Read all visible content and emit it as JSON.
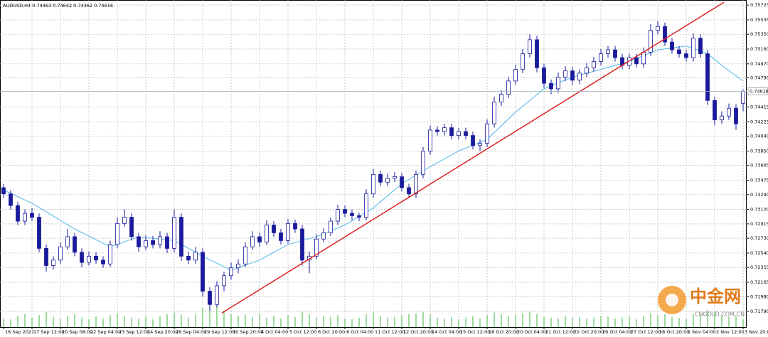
{
  "chart_data": {
    "type": "candlestick",
    "title": "AUDUSD,H4  0.74463 0.74642 0.74362 0.74616",
    "ylim": [
      0.7159,
      0.7579
    ],
    "yticks": [
      {
        "value": 0.75725,
        "label": "0.75725"
      },
      {
        "value": 0.75535,
        "label": "0.75535"
      },
      {
        "value": 0.7535,
        "label": "0.75350"
      },
      {
        "value": 0.7516,
        "label": "0.75160"
      },
      {
        "value": 0.7497,
        "label": "0.74970"
      },
      {
        "value": 0.7479,
        "label": "0.74790"
      },
      {
        "value": 0.74415,
        "label": "0.74415"
      },
      {
        "value": 0.74225,
        "label": "0.74225"
      },
      {
        "value": 0.7404,
        "label": "0.74040"
      },
      {
        "value": 0.7385,
        "label": "0.73850"
      },
      {
        "value": 0.73665,
        "label": "0.73665"
      },
      {
        "value": 0.73475,
        "label": "0.73475"
      },
      {
        "value": 0.7329,
        "label": "0.73290"
      },
      {
        "value": 0.731,
        "label": "0.73100"
      },
      {
        "value": 0.72915,
        "label": "0.72915"
      },
      {
        "value": 0.7273,
        "label": "0.72730"
      },
      {
        "value": 0.7254,
        "label": "0.72540"
      },
      {
        "value": 0.72355,
        "label": "0.72355"
      },
      {
        "value": 0.72165,
        "label": "0.72165"
      },
      {
        "value": 0.7198,
        "label": "0.71980"
      },
      {
        "value": 0.7179,
        "label": "0.71790"
      }
    ],
    "grid": true,
    "x_labels": [
      "16 Sep 2021",
      "17 Sep 12:00",
      "20 Sep 08:00",
      "22 Sep 04:00",
      "23 Sep 12:00",
      "24 Sep 20:00",
      "28 Sep 04:00",
      "29 Sep 12:00",
      "30 Sep 20:00",
      "4 Oct 04:00",
      "5 Oct 12:00",
      "6 Oct 20:00",
      "8 Oct 04:00",
      "11 Oct 12:00",
      "12 Oct 20:00",
      "14 Oct 04:00",
      "15 Oct 12:00",
      "18 Oct 20:00",
      "20 Oct 04:00",
      "21 Oct 12:00",
      "22 Oct 20:00",
      "26 Oct 04:00",
      "27 Oct 12:00",
      "28 Oct 20:00",
      "1 Nov 04:00",
      "2 Nov 12:00",
      "3 Nov 20:00"
    ],
    "bull_color": "#ffffff",
    "bear_color": "#1a1a9c",
    "wick_color": "#1a1a9c",
    "candles": [
      [
        0.7338,
        0.7343,
        0.7325,
        0.733
      ],
      [
        0.733,
        0.7335,
        0.731,
        0.7315
      ],
      [
        0.7315,
        0.732,
        0.729,
        0.7295
      ],
      [
        0.7295,
        0.731,
        0.729,
        0.7305
      ],
      [
        0.7305,
        0.7312,
        0.7295,
        0.73
      ],
      [
        0.73,
        0.7305,
        0.7255,
        0.726
      ],
      [
        0.726,
        0.7265,
        0.723,
        0.7238
      ],
      [
        0.7238,
        0.725,
        0.7233,
        0.7245
      ],
      [
        0.7245,
        0.7268,
        0.724,
        0.7262
      ],
      [
        0.7262,
        0.7285,
        0.7258,
        0.7275
      ],
      [
        0.7275,
        0.728,
        0.725,
        0.7255
      ],
      [
        0.7255,
        0.726,
        0.7236,
        0.7242
      ],
      [
        0.7242,
        0.7256,
        0.7238,
        0.725
      ],
      [
        0.725,
        0.7255,
        0.724,
        0.7245
      ],
      [
        0.7245,
        0.725,
        0.7235,
        0.724
      ],
      [
        0.724,
        0.727,
        0.7236,
        0.7265
      ],
      [
        0.7265,
        0.73,
        0.726,
        0.7292
      ],
      [
        0.7292,
        0.731,
        0.7288,
        0.73
      ],
      [
        0.73,
        0.7305,
        0.727,
        0.7275
      ],
      [
        0.7275,
        0.728,
        0.7256,
        0.7262
      ],
      [
        0.7262,
        0.7277,
        0.7258,
        0.727
      ],
      [
        0.727,
        0.7276,
        0.726,
        0.7265
      ],
      [
        0.7265,
        0.7282,
        0.726,
        0.7275
      ],
      [
        0.7275,
        0.728,
        0.7254,
        0.726
      ],
      [
        0.726,
        0.731,
        0.7255,
        0.73
      ],
      [
        0.73,
        0.7305,
        0.7244,
        0.725
      ],
      [
        0.725,
        0.7256,
        0.724,
        0.7245
      ],
      [
        0.7245,
        0.7262,
        0.724,
        0.7255
      ],
      [
        0.7255,
        0.726,
        0.7198,
        0.7205
      ],
      [
        0.7205,
        0.721,
        0.718,
        0.7188
      ],
      [
        0.7188,
        0.7218,
        0.7184,
        0.7212
      ],
      [
        0.7212,
        0.723,
        0.7205,
        0.7225
      ],
      [
        0.7225,
        0.7242,
        0.722,
        0.7235
      ],
      [
        0.7235,
        0.7246,
        0.7228,
        0.724
      ],
      [
        0.724,
        0.7268,
        0.7236,
        0.7262
      ],
      [
        0.7262,
        0.7282,
        0.7258,
        0.7275
      ],
      [
        0.7275,
        0.728,
        0.7262,
        0.7268
      ],
      [
        0.7268,
        0.7296,
        0.7264,
        0.729
      ],
      [
        0.729,
        0.7295,
        0.7275,
        0.728
      ],
      [
        0.728,
        0.7285,
        0.7265,
        0.727
      ],
      [
        0.727,
        0.7298,
        0.7266,
        0.7292
      ],
      [
        0.7292,
        0.7297,
        0.728,
        0.7285
      ],
      [
        0.7285,
        0.729,
        0.7238,
        0.7245
      ],
      [
        0.7245,
        0.7256,
        0.7228,
        0.725
      ],
      [
        0.725,
        0.7278,
        0.7246,
        0.7272
      ],
      [
        0.7272,
        0.7286,
        0.7268,
        0.728
      ],
      [
        0.728,
        0.73,
        0.7276,
        0.7295
      ],
      [
        0.7295,
        0.7316,
        0.729,
        0.731
      ],
      [
        0.731,
        0.7315,
        0.73,
        0.7305
      ],
      [
        0.7305,
        0.731,
        0.7296,
        0.7302
      ],
      [
        0.7302,
        0.7306,
        0.7295,
        0.73
      ],
      [
        0.73,
        0.7336,
        0.7296,
        0.733
      ],
      [
        0.733,
        0.7362,
        0.7325,
        0.7355
      ],
      [
        0.7355,
        0.736,
        0.734,
        0.7345
      ],
      [
        0.7345,
        0.7356,
        0.734,
        0.735
      ],
      [
        0.735,
        0.7358,
        0.7345,
        0.7352
      ],
      [
        0.7352,
        0.7357,
        0.7333,
        0.7338
      ],
      [
        0.7338,
        0.7343,
        0.7325,
        0.733
      ],
      [
        0.733,
        0.736,
        0.7325,
        0.7355
      ],
      [
        0.7355,
        0.739,
        0.735,
        0.7385
      ],
      [
        0.7385,
        0.7418,
        0.738,
        0.7412
      ],
      [
        0.7412,
        0.7417,
        0.7405,
        0.741
      ],
      [
        0.741,
        0.742,
        0.7405,
        0.7415
      ],
      [
        0.7415,
        0.742,
        0.74,
        0.7405
      ],
      [
        0.7405,
        0.7415,
        0.74,
        0.741
      ],
      [
        0.741,
        0.7415,
        0.74,
        0.7405
      ],
      [
        0.7405,
        0.741,
        0.7387,
        0.7392
      ],
      [
        0.7392,
        0.74,
        0.7385,
        0.7395
      ],
      [
        0.7395,
        0.7426,
        0.739,
        0.742
      ],
      [
        0.742,
        0.7455,
        0.7415,
        0.7448
      ],
      [
        0.7448,
        0.7463,
        0.7443,
        0.7458
      ],
      [
        0.7458,
        0.748,
        0.7453,
        0.7475
      ],
      [
        0.7475,
        0.7496,
        0.747,
        0.749
      ],
      [
        0.749,
        0.7516,
        0.7485,
        0.751
      ],
      [
        0.751,
        0.7535,
        0.7505,
        0.7528
      ],
      [
        0.7528,
        0.7533,
        0.7486,
        0.7492
      ],
      [
        0.7492,
        0.7497,
        0.7466,
        0.7472
      ],
      [
        0.7472,
        0.7477,
        0.7458,
        0.7465
      ],
      [
        0.7465,
        0.7486,
        0.746,
        0.748
      ],
      [
        0.748,
        0.7494,
        0.7475,
        0.7488
      ],
      [
        0.7488,
        0.7493,
        0.747,
        0.7476
      ],
      [
        0.7476,
        0.749,
        0.7471,
        0.7485
      ],
      [
        0.7485,
        0.7498,
        0.748,
        0.7492
      ],
      [
        0.7492,
        0.7506,
        0.7487,
        0.75
      ],
      [
        0.75,
        0.7516,
        0.7495,
        0.751
      ],
      [
        0.751,
        0.752,
        0.7505,
        0.7515
      ],
      [
        0.7515,
        0.752,
        0.75,
        0.7505
      ],
      [
        0.7505,
        0.751,
        0.749,
        0.7495
      ],
      [
        0.7495,
        0.751,
        0.749,
        0.7505
      ],
      [
        0.7505,
        0.751,
        0.7492,
        0.7497
      ],
      [
        0.7497,
        0.7518,
        0.7492,
        0.7512
      ],
      [
        0.7512,
        0.7548,
        0.7507,
        0.754
      ],
      [
        0.754,
        0.7552,
        0.7535,
        0.7545
      ],
      [
        0.7545,
        0.755,
        0.752,
        0.7525
      ],
      [
        0.7525,
        0.753,
        0.751,
        0.7515
      ],
      [
        0.7515,
        0.752,
        0.7505,
        0.751
      ],
      [
        0.751,
        0.7515,
        0.75,
        0.7505
      ],
      [
        0.7505,
        0.7536,
        0.75,
        0.753
      ],
      [
        0.753,
        0.7535,
        0.7505,
        0.751
      ],
      [
        0.751,
        0.7515,
        0.7444,
        0.745
      ],
      [
        0.745,
        0.7455,
        0.7418,
        0.7425
      ],
      [
        0.7425,
        0.7436,
        0.742,
        0.743
      ],
      [
        0.743,
        0.7446,
        0.7425,
        0.744
      ],
      [
        0.744,
        0.7445,
        0.7412,
        0.742
      ],
      [
        0.74463,
        0.74642,
        0.74362,
        0.74616
      ]
    ],
    "volumes": [
      20,
      18,
      25,
      30,
      22,
      28,
      35,
      24,
      20,
      26,
      30,
      22,
      18,
      25,
      20,
      28,
      32,
      26,
      22,
      20,
      24,
      18,
      26,
      30,
      34,
      28,
      22,
      30,
      45,
      60,
      52,
      38,
      30,
      26,
      28,
      24,
      30,
      22,
      26,
      20,
      28,
      24,
      36,
      30,
      22,
      26,
      24,
      28,
      20,
      18,
      22,
      30,
      34,
      26,
      22,
      24,
      28,
      30,
      32,
      36,
      30,
      22,
      20,
      24,
      18,
      22,
      26,
      20,
      28,
      34,
      30,
      26,
      28,
      32,
      36,
      30,
      24,
      22,
      20,
      26,
      22,
      24,
      20,
      22,
      26,
      24,
      20,
      22,
      24,
      18,
      26,
      32,
      28,
      30,
      24,
      22,
      20,
      30,
      28,
      40,
      36,
      28,
      24,
      26,
      18
    ],
    "volume_color": "#5cc35c",
    "ma": {
      "color": "#4fb8e8",
      "x": [
        0,
        4,
        10,
        15,
        19,
        24,
        28,
        32,
        36,
        40,
        44,
        48,
        52,
        56,
        60,
        64,
        68,
        72,
        76,
        80,
        84,
        88,
        92,
        96,
        99,
        101,
        104
      ],
      "values": [
        0.7335,
        0.7318,
        0.7285,
        0.7262,
        0.7275,
        0.727,
        0.725,
        0.7232,
        0.7245,
        0.7265,
        0.7275,
        0.729,
        0.7312,
        0.7343,
        0.7365,
        0.7385,
        0.74,
        0.7435,
        0.7465,
        0.748,
        0.749,
        0.75,
        0.7515,
        0.752,
        0.751,
        0.7495,
        0.7475
      ]
    },
    "trendline": {
      "color": "#e02020",
      "x": [
        30.7,
        101.3
      ],
      "values": [
        0.7177,
        0.7576
      ]
    },
    "watermark": {
      "name": "中金网",
      "site": "CNGOLD.COM.CN"
    }
  }
}
